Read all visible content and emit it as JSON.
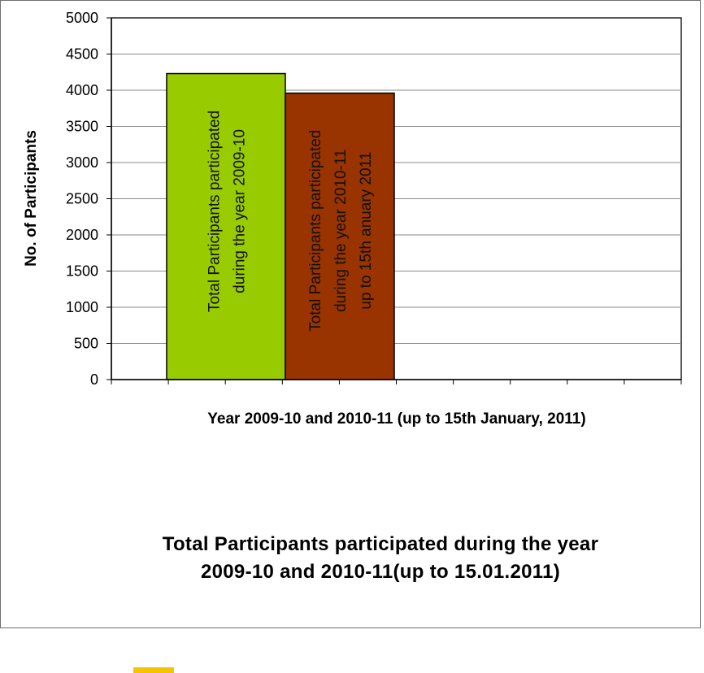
{
  "chart_data": {
    "type": "bar",
    "title_lines": [
      "Total Participants participated during the year",
      "2009-10 and 2010-11(up to 15.01.2011)"
    ],
    "xlabel": "Year 2009-10 and 2010-11 (up to 15th January, 2011)",
    "ylabel": "No. of Participants",
    "ylim": [
      0,
      5000
    ],
    "yticks": [
      0,
      500,
      1000,
      1500,
      2000,
      2500,
      3000,
      3500,
      4000,
      4500,
      5000
    ],
    "grid": true,
    "series": [
      {
        "label_lines": [
          "Total Participants participated",
          "during the year 2009-10"
        ],
        "value": 4230,
        "color": "#99cc00"
      },
      {
        "label_lines": [
          "Total Participants participated",
          "during the year 2010-11",
          "up to 15th   anuary  2011"
        ],
        "value": 3960,
        "color": "#993300"
      }
    ]
  },
  "legend": {
    "swatch_color": "#f5c400"
  }
}
